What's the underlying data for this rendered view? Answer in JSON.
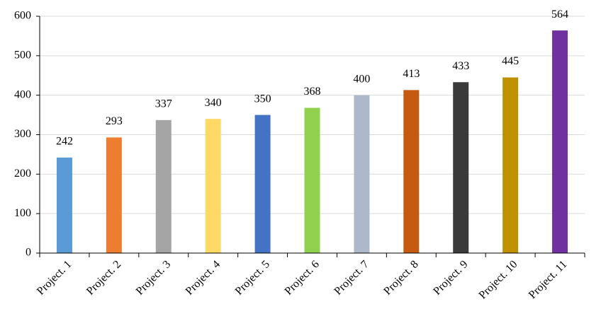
{
  "chart_data": {
    "type": "bar",
    "categories": [
      "Project. 1",
      "Project. 2",
      "Project. 3",
      "Project. 4",
      "Project. 5",
      "Project. 6",
      "Project. 7",
      "Project. 8",
      "Project. 9",
      "Project. 10",
      "Project. 11"
    ],
    "values": [
      242,
      293,
      337,
      340,
      350,
      368,
      400,
      413,
      433,
      445,
      564
    ],
    "colors": [
      "#5b9bd5",
      "#ed7d31",
      "#a5a5a5",
      "#ffd966",
      "#4472c4",
      "#92d050",
      "#adb9ca",
      "#c55a11",
      "#3a3a3a",
      "#bf9000",
      "#7030a0"
    ],
    "ylim": [
      0,
      600
    ],
    "yticks": [
      0,
      100,
      200,
      300,
      400,
      500,
      600
    ],
    "grid": true
  }
}
